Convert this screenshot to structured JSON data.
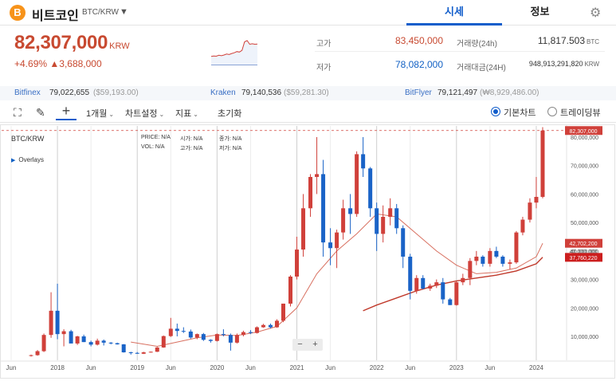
{
  "header": {
    "coin_icon": "B",
    "coin_icon_name": "bitcoin-icon",
    "coin_name": "비트코인",
    "pair": "BTC/KRW",
    "caret": "▼",
    "tabs": [
      "시세",
      "정보"
    ],
    "settings_icon": "⚙"
  },
  "price": {
    "value": "82,307,000",
    "unit": "KRW",
    "change_pct": "+4.69%",
    "change_abs": "▲3,688,000"
  },
  "stats": {
    "high_label": "고가",
    "high_value": "83,450,000",
    "low_label": "저가",
    "low_value": "78,082,000",
    "volume_label": "거래량(24h)",
    "volume_value": "11,817.503",
    "volume_unit": "BTC",
    "amount_label": "거래대금(24H)",
    "amount_value": "948,913,291,820",
    "amount_unit": "KRW"
  },
  "exchanges": [
    {
      "name": "Bitfinex",
      "value": "79,022,655",
      "usd": "($59,193.00)"
    },
    {
      "name": "Kraken",
      "value": "79,140,536",
      "usd": "($59,281.30)"
    },
    {
      "name": "BitFlyer",
      "value": "79,121,497",
      "usd": "(₩8,929,486.00)"
    }
  ],
  "toolbar": {
    "expand_icon": "⛶",
    "draw_icon": "✎",
    "crosshair_icon": "+",
    "period": "1개월",
    "chart_settings": "차트설정",
    "indicators": "지표",
    "reset": "초기화",
    "basic_chart": "기본차트",
    "tradingview": "트레이딩뷰",
    "caret": "⌄"
  },
  "chart_legend": {
    "symbol": "BTC/KRW",
    "overlays": "Overlays",
    "overlays_icon": "▶",
    "price_label": "PRICE:",
    "vol_label": "VOL:",
    "open_label": "시가:",
    "high_label": "고가:",
    "close_label": "종가:",
    "low_label": "저가:",
    "na": "N/A"
  },
  "zoom": {
    "minus": "−",
    "plus": "+"
  },
  "chart_data": {
    "type": "candlestick",
    "title": "BTC/KRW",
    "interval": "1개월",
    "yaxis_ticks": [
      "80,000,000",
      "70,000,000",
      "60,000,000",
      "50,000,000",
      "40,000,000",
      "30,000,000",
      "20,000,000",
      "10,000,000"
    ],
    "ytick_values": [
      80000000,
      70000000,
      60000000,
      50000000,
      40000000,
      30000000,
      20000000,
      10000000
    ],
    "ylim": [
      0,
      85000000
    ],
    "xaxis_ticks": [
      "Jun",
      "2018",
      "Jun",
      "2019",
      "Jun",
      "2020",
      "Jun",
      "2021",
      "Jun",
      "2022",
      "Jun",
      "2023",
      "Jun",
      "2024"
    ],
    "xtick_times": [
      2017.42,
      2018.0,
      2018.42,
      2019.0,
      2019.42,
      2020.0,
      2020.42,
      2021.0,
      2021.42,
      2022.0,
      2022.42,
      2023.0,
      2023.42,
      2024.0
    ],
    "xlim": [
      2017.38,
      2024.3
    ],
    "price_labels": [
      {
        "text": "82,307,000",
        "value": 82307000,
        "color": "#d0403a"
      },
      {
        "text": "42,702,200",
        "value": 42702200,
        "color": "#d0403a"
      },
      {
        "text": "40,000,000",
        "value": 40000000,
        "color": "#666666"
      },
      {
        "text": "37,760,220",
        "value": 37760220,
        "color": "#cc1e1e"
      }
    ],
    "up_color": "#d0403a",
    "down_color": "#1a63c7",
    "candles": [
      {
        "t": 2017.67,
        "o": 3200000.0,
        "h": 3600000.0,
        "l": 2900000.0,
        "c": 3400000.0
      },
      {
        "t": 2017.75,
        "o": 3400000.0,
        "h": 5200000.0,
        "l": 3200000.0,
        "c": 4800000.0
      },
      {
        "t": 2017.83,
        "o": 4800000.0,
        "h": 11000000.0,
        "l": 4500000.0,
        "c": 10500000.0
      },
      {
        "t": 2017.92,
        "o": 10500000.0,
        "h": 25500000.0,
        "l": 9500000.0,
        "c": 19000000.0
      },
      {
        "t": 2018.0,
        "o": 19000000.0,
        "h": 28500000.0,
        "l": 9000000.0,
        "c": 10800000.0
      },
      {
        "t": 2018.08,
        "o": 10800000.0,
        "h": 12500000.0,
        "l": 6500000.0,
        "c": 11800000.0
      },
      {
        "t": 2018.17,
        "o": 11800000.0,
        "h": 12300000.0,
        "l": 7800000.0,
        "c": 7500000.0
      },
      {
        "t": 2018.25,
        "o": 7500000.0,
        "h": 10200000.0,
        "l": 7000000.0,
        "c": 10000000.0
      },
      {
        "t": 2018.33,
        "o": 10000000.0,
        "h": 10600000.0,
        "l": 8000000.0,
        "c": 8000000.0
      },
      {
        "t": 2018.42,
        "o": 8000000.0,
        "h": 8500000.0,
        "l": 6500000.0,
        "c": 7100000.0
      },
      {
        "t": 2018.5,
        "o": 7100000.0,
        "h": 9200000.0,
        "l": 6800000.0,
        "c": 8500000.0
      },
      {
        "t": 2018.58,
        "o": 8500000.0,
        "h": 8900000.0,
        "l": 6800000.0,
        "c": 7800000.0
      },
      {
        "t": 2018.67,
        "o": 7800000.0,
        "h": 8000000.0,
        "l": 7200000.0,
        "c": 7600000.0
      },
      {
        "t": 2018.75,
        "o": 7600000.0,
        "h": 7800000.0,
        "l": 7100000.0,
        "c": 7200000.0
      },
      {
        "t": 2018.83,
        "o": 7200000.0,
        "h": 7300000.0,
        "l": 4300000.0,
        "c": 4400000.0
      },
      {
        "t": 2018.92,
        "o": 4400000.0,
        "h": 4600000.0,
        "l": 3600000.0,
        "c": 4200000.0
      },
      {
        "t": 2019.0,
        "o": 4200000.0,
        "h": 4500000.0,
        "l": 3900000.0,
        "c": 3900000.0
      },
      {
        "t": 2019.08,
        "o": 3900000.0,
        "h": 4600000.0,
        "l": 3800000.0,
        "c": 4400000.0
      },
      {
        "t": 2019.17,
        "o": 4400000.0,
        "h": 4700000.0,
        "l": 4300000.0,
        "c": 4600000.0
      },
      {
        "t": 2019.25,
        "o": 4600000.0,
        "h": 6300000.0,
        "l": 4500000.0,
        "c": 6100000.0
      },
      {
        "t": 2019.33,
        "o": 6100000.0,
        "h": 10300000.0,
        "l": 6000000.0,
        "c": 10100000.0
      },
      {
        "t": 2019.42,
        "o": 10100000.0,
        "h": 16500000.0,
        "l": 9800000.0,
        "c": 12700000.0
      },
      {
        "t": 2019.5,
        "o": 12700000.0,
        "h": 14500000.0,
        "l": 10000000.0,
        "c": 11900000.0
      },
      {
        "t": 2019.58,
        "o": 11900000.0,
        "h": 13200000.0,
        "l": 11200000.0,
        "c": 11700000.0
      },
      {
        "t": 2019.67,
        "o": 11700000.0,
        "h": 12400000.0,
        "l": 9200000.0,
        "c": 9600000.0
      },
      {
        "t": 2019.75,
        "o": 9600000.0,
        "h": 11000000.0,
        "l": 9000000.0,
        "c": 10800000.0
      },
      {
        "t": 2019.83,
        "o": 10800000.0,
        "h": 11200000.0,
        "l": 8400000.0,
        "c": 8800000.0
      },
      {
        "t": 2019.92,
        "o": 8800000.0,
        "h": 9000000.0,
        "l": 7800000.0,
        "c": 8400000.0
      },
      {
        "t": 2020.0,
        "o": 8400000.0,
        "h": 11000000.0,
        "l": 8200000.0,
        "c": 10800000.0
      },
      {
        "t": 2020.08,
        "o": 10800000.0,
        "h": 12500000.0,
        "l": 10000000.0,
        "c": 10500000.0
      },
      {
        "t": 2020.17,
        "o": 10500000.0,
        "h": 11000000.0,
        "l": 5000000.0,
        "c": 7800000.0
      },
      {
        "t": 2020.25,
        "o": 7800000.0,
        "h": 11000000.0,
        "l": 7500000.0,
        "c": 10500000.0
      },
      {
        "t": 2020.33,
        "o": 10500000.0,
        "h": 12000000.0,
        "l": 10000000.0,
        "c": 11500000.0
      },
      {
        "t": 2020.42,
        "o": 11500000.0,
        "h": 12200000.0,
        "l": 10800000.0,
        "c": 11200000.0
      },
      {
        "t": 2020.5,
        "o": 11200000.0,
        "h": 13500000.0,
        "l": 11000000.0,
        "c": 13200000.0
      },
      {
        "t": 2020.58,
        "o": 13200000.0,
        "h": 14400000.0,
        "l": 13000000.0,
        "c": 14000000.0
      },
      {
        "t": 2020.67,
        "o": 14000000.0,
        "h": 14500000.0,
        "l": 12800000.0,
        "c": 13200000.0
      },
      {
        "t": 2020.75,
        "o": 13200000.0,
        "h": 16000000.0,
        "l": 13000000.0,
        "c": 15500000.0
      },
      {
        "t": 2020.83,
        "o": 15500000.0,
        "h": 21500000.0,
        "l": 15000000.0,
        "c": 21500000.0
      },
      {
        "t": 2020.92,
        "o": 21500000.0,
        "h": 31500000.0,
        "l": 20500000.0,
        "c": 31000000.0
      },
      {
        "t": 2021.0,
        "o": 31000000.0,
        "h": 45000000.0,
        "l": 30000000.0,
        "c": 40500000.0
      },
      {
        "t": 2021.08,
        "o": 40500000.0,
        "h": 60000000.0,
        "l": 38000000.0,
        "c": 55000000.0
      },
      {
        "t": 2021.17,
        "o": 55000000.0,
        "h": 67000000.0,
        "l": 52000000.0,
        "c": 66000000.0
      },
      {
        "t": 2021.25,
        "o": 66000000.0,
        "h": 80000000.0,
        "l": 60000000.0,
        "c": 67000000.0
      },
      {
        "t": 2021.33,
        "o": 67000000.0,
        "h": 72000000.0,
        "l": 38000000.0,
        "c": 43000000.0
      },
      {
        "t": 2021.42,
        "o": 43000000.0,
        "h": 48000000.0,
        "l": 35000000.0,
        "c": 41000000.0
      },
      {
        "t": 2021.5,
        "o": 41000000.0,
        "h": 47500000.0,
        "l": 34000000.0,
        "c": 46500000.0
      },
      {
        "t": 2021.58,
        "o": 46500000.0,
        "h": 58000000.0,
        "l": 44000000.0,
        "c": 55000000.0
      },
      {
        "t": 2021.67,
        "o": 55000000.0,
        "h": 60000000.0,
        "l": 46000000.0,
        "c": 53000000.0
      },
      {
        "t": 2021.75,
        "o": 53000000.0,
        "h": 75000000.0,
        "l": 52000000.0,
        "c": 74000000.0
      },
      {
        "t": 2021.83,
        "o": 74000000.0,
        "h": 80000000.0,
        "l": 66000000.0,
        "c": 69000000.0
      },
      {
        "t": 2021.92,
        "o": 69000000.0,
        "h": 69500000.0,
        "l": 52000000.0,
        "c": 55000000.0
      },
      {
        "t": 2022.0,
        "o": 55000000.0,
        "h": 57000000.0,
        "l": 40000000.0,
        "c": 46000000.0
      },
      {
        "t": 2022.08,
        "o": 46000000.0,
        "h": 56000000.0,
        "l": 43000000.0,
        "c": 52000000.0
      },
      {
        "t": 2022.17,
        "o": 52000000.0,
        "h": 58500000.0,
        "l": 49000000.0,
        "c": 55000000.0
      },
      {
        "t": 2022.25,
        "o": 55000000.0,
        "h": 56500000.0,
        "l": 46000000.0,
        "c": 48000000.0
      },
      {
        "t": 2022.33,
        "o": 48000000.0,
        "h": 49000000.0,
        "l": 34000000.0,
        "c": 38000000.0
      },
      {
        "t": 2022.42,
        "o": 38000000.0,
        "h": 39000000.0,
        "l": 23000000.0,
        "c": 26000000.0
      },
      {
        "t": 2022.5,
        "o": 26000000.0,
        "h": 31500000.0,
        "l": 25000000.0,
        "c": 30500000.0
      },
      {
        "t": 2022.58,
        "o": 30500000.0,
        "h": 31500000.0,
        "l": 26500000.0,
        "c": 26800000.0
      },
      {
        "t": 2022.67,
        "o": 26800000.0,
        "h": 28500000.0,
        "l": 26000000.0,
        "c": 27800000.0
      },
      {
        "t": 2022.75,
        "o": 27800000.0,
        "h": 30000000.0,
        "l": 27000000.0,
        "c": 29000000.0
      },
      {
        "t": 2022.83,
        "o": 29000000.0,
        "h": 30500000.0,
        "l": 21500000.0,
        "c": 23000000.0
      },
      {
        "t": 2022.92,
        "o": 23000000.0,
        "h": 23500000.0,
        "l": 21000000.0,
        "c": 21000000.0
      },
      {
        "t": 2023.0,
        "o": 21000000.0,
        "h": 29500000.0,
        "l": 20800000.0,
        "c": 29000000.0
      },
      {
        "t": 2023.08,
        "o": 29000000.0,
        "h": 32000000.0,
        "l": 28000000.0,
        "c": 30500000.0
      },
      {
        "t": 2023.17,
        "o": 30500000.0,
        "h": 37500000.0,
        "l": 28000000.0,
        "c": 36500000.0
      },
      {
        "t": 2023.25,
        "o": 36500000.0,
        "h": 40000000.0,
        "l": 35000000.0,
        "c": 38000000.0
      },
      {
        "t": 2023.33,
        "o": 38000000.0,
        "h": 38500000.0,
        "l": 34500000.0,
        "c": 35500000.0
      },
      {
        "t": 2023.42,
        "o": 35500000.0,
        "h": 41000000.0,
        "l": 34500000.0,
        "c": 40000000.0
      },
      {
        "t": 2023.5,
        "o": 40000000.0,
        "h": 41500000.0,
        "l": 37500000.0,
        "c": 38000000.0
      },
      {
        "t": 2023.58,
        "o": 38000000.0,
        "h": 38500000.0,
        "l": 34500000.0,
        "c": 35500000.0
      },
      {
        "t": 2023.67,
        "o": 35500000.0,
        "h": 37000000.0,
        "l": 33500000.0,
        "c": 36000000.0
      },
      {
        "t": 2023.75,
        "o": 36000000.0,
        "h": 47000000.0,
        "l": 35500000.0,
        "c": 46500000.0
      },
      {
        "t": 2023.83,
        "o": 46500000.0,
        "h": 52000000.0,
        "l": 45500000.0,
        "c": 51000000.0
      },
      {
        "t": 2023.92,
        "o": 51000000.0,
        "h": 58500000.0,
        "l": 50000000.0,
        "c": 57000000.0
      },
      {
        "t": 2024.0,
        "o": 57000000.0,
        "h": 66000000.0,
        "l": 55000000.0,
        "c": 59000000.0
      },
      {
        "t": 2024.08,
        "o": 59000000.0,
        "h": 83500000.0,
        "l": 58500000.0,
        "c": 82300000.0
      }
    ],
    "ma_short": [
      {
        "t": 2018.92,
        "v": 8000000.0
      },
      {
        "t": 2019.25,
        "v": 6500000.0
      },
      {
        "t": 2019.5,
        "v": 8000000.0
      },
      {
        "t": 2019.75,
        "v": 9500000.0
      },
      {
        "t": 2020.0,
        "v": 10500000.0
      },
      {
        "t": 2020.25,
        "v": 10300000.0
      },
      {
        "t": 2020.5,
        "v": 11500000.0
      },
      {
        "t": 2020.75,
        "v": 13500000.0
      },
      {
        "t": 2021.0,
        "v": 20000000.0
      },
      {
        "t": 2021.25,
        "v": 32000000.0
      },
      {
        "t": 2021.5,
        "v": 40000000.0
      },
      {
        "t": 2021.75,
        "v": 46000000.0
      },
      {
        "t": 2022.0,
        "v": 53000000.0
      },
      {
        "t": 2022.25,
        "v": 52000000.0
      },
      {
        "t": 2022.5,
        "v": 46000000.0
      },
      {
        "t": 2022.75,
        "v": 40000000.0
      },
      {
        "t": 2023.0,
        "v": 35000000.0
      },
      {
        "t": 2023.25,
        "v": 32000000.0
      },
      {
        "t": 2023.5,
        "v": 32500000.0
      },
      {
        "t": 2023.75,
        "v": 34000000.0
      },
      {
        "t": 2024.0,
        "v": 38000000.0
      },
      {
        "t": 2024.08,
        "v": 42700000.0
      }
    ],
    "ma_long": [
      {
        "t": 2021.83,
        "v": 19000000.0
      },
      {
        "t": 2022.0,
        "v": 21000000.0
      },
      {
        "t": 2022.25,
        "v": 23500000.0
      },
      {
        "t": 2022.5,
        "v": 26000000.0
      },
      {
        "t": 2022.75,
        "v": 28000000.0
      },
      {
        "t": 2023.0,
        "v": 29500000.0
      },
      {
        "t": 2023.25,
        "v": 30500000.0
      },
      {
        "t": 2023.5,
        "v": 31500000.0
      },
      {
        "t": 2023.75,
        "v": 33000000.0
      },
      {
        "t": 2024.0,
        "v": 35500000.0
      },
      {
        "t": 2024.08,
        "v": 37800000.0
      }
    ]
  },
  "mini_chart_data": {
    "type": "line",
    "values": [
      0.3,
      0.32,
      0.31,
      0.35,
      0.33,
      0.36,
      0.4,
      0.38,
      0.42,
      0.45,
      0.5,
      0.48,
      0.55,
      0.9,
      0.95,
      0.8,
      0.82,
      0.8,
      0.81
    ]
  }
}
